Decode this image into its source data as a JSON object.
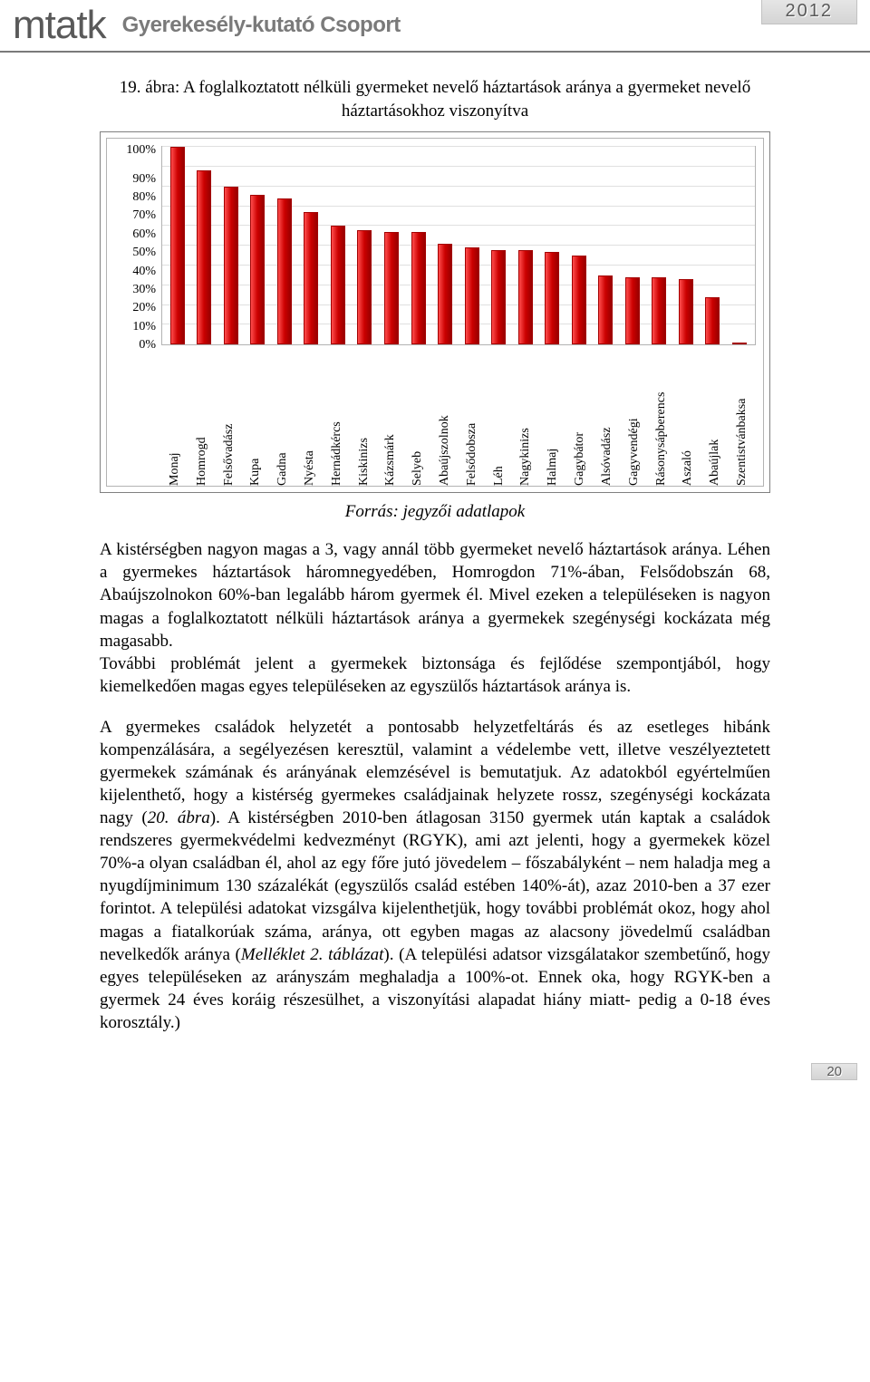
{
  "header": {
    "logo": "mtatk",
    "subtitle": "Gyerekesély-kutató Csoport",
    "year": "2012"
  },
  "figure": {
    "title": "19. ábra: A foglalkoztatott nélküli gyermeket nevelő háztartások aránya a gyermeket nevelő háztartásokhoz viszonyítva",
    "source": "Forrás: jegyzői adatlapok",
    "chart": {
      "type": "bar",
      "ylim": [
        0,
        100
      ],
      "ytick_step": 10,
      "yticks": [
        "100%",
        "90%",
        "80%",
        "70%",
        "60%",
        "50%",
        "40%",
        "30%",
        "20%",
        "10%",
        "0%"
      ],
      "bar_color": "#cc0000",
      "grid_color": "#e0e0e0",
      "background_color": "#ffffff",
      "categories": [
        "Monaj",
        "Homrogd",
        "Felsővadász",
        "Kupa",
        "Gadna",
        "Nyésta",
        "Hernádkércs",
        "Kiskinizs",
        "Kázsmárk",
        "Selyeb",
        "Abaújszolnok",
        "Felsődobsza",
        "Léh",
        "Nagykinizs",
        "Halmaj",
        "Gagybátor",
        "Alsóvadász",
        "Gagyvendégi",
        "Rásonysápberencs",
        "Aszaló",
        "Abaújlak",
        "Szentistvánbaksa"
      ],
      "values": [
        100,
        88,
        80,
        76,
        74,
        67,
        60,
        58,
        57,
        57,
        51,
        49,
        48,
        48,
        47,
        45,
        35,
        34,
        34,
        33,
        24,
        0
      ]
    }
  },
  "paragraphs": {
    "p1": "A kistérségben nagyon magas a 3, vagy annál több gyermeket nevelő háztartások aránya. Léhen a gyermekes háztartások háromnegyedében, Homrogdon 71%-ában, Felsődobszán 68, Abaújszolnokon 60%-ban legalább három gyermek él. Mivel ezeken a településeken is nagyon magas a foglalkoztatott nélküli háztartások aránya a gyermekek szegénységi kockázata még magasabb.",
    "p2": "További problémát jelent a gyermekek biztonsága és fejlődése szempontjából, hogy kiemelkedően magas egyes településeken az egyszülős háztartások aránya is.",
    "p3_a": "A gyermekes családok helyzetét a pontosabb helyzetfeltárás és az esetleges hibánk kompenzálására, a segélyezésen keresztül, valamint a védelembe vett, illetve veszélyeztetett gyermekek számának és arányának elemzésével is bemutatjuk. Az adatokból egyértelműen kijelenthető, hogy a kistérség gyermekes családjainak helyzete rossz, szegénységi kockázata nagy (",
    "p3_em1": "20.  ábra",
    "p3_b": "). A kistérségben 2010-ben átlagosan 3150 gyermek után kaptak a családok rendszeres gyermekvédelmi kedvezményt (RGYK), ami azt jelenti, hogy a gyermekek közel 70%-a olyan családban él, ahol az egy főre jutó jövedelem – főszabályként – nem haladja meg a nyugdíjminimum 130 százalékát (egyszülős család estében 140%-át), azaz 2010-ben a 37 ezer forintot. A települési adatokat vizsgálva kijelenthetjük, hogy további problémát okoz, hogy ahol magas a fiatalkorúak száma, aránya, ott egyben magas az alacsony jövedelmű családban nevelkedők aránya (",
    "p3_em2": "Melléklet  2.  táblázat",
    "p3_c": "). (A települési adatsor vizsgálatakor szembetűnő, hogy egyes településeken az arányszám meghaladja a 100%-ot. Ennek oka, hogy RGYK-ben a gyermek 24 éves koráig részesülhet, a viszonyítási alapadat hiány miatt- pedig a 0-18 éves korosztály.)"
  },
  "footer": {
    "page": "20"
  }
}
